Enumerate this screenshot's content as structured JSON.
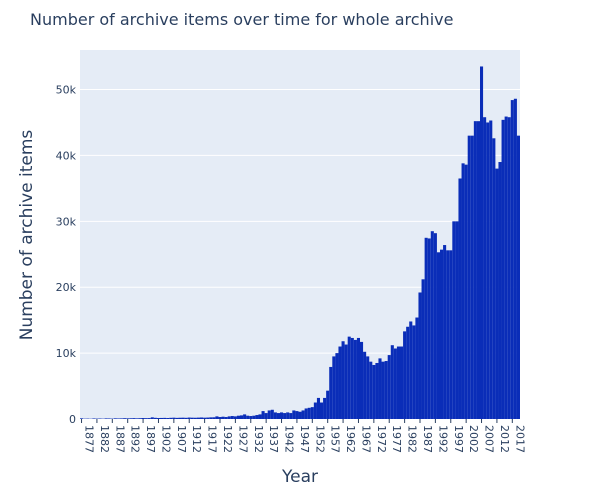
{
  "chart_data": {
    "type": "bar",
    "title": "Number of archive items over time for whole archive",
    "xlabel": "Year",
    "ylabel": "Number of archive items",
    "color": "#0a2db8",
    "x": [
      1877,
      1878,
      1879,
      1880,
      1881,
      1882,
      1883,
      1884,
      1885,
      1886,
      1887,
      1888,
      1889,
      1890,
      1891,
      1892,
      1893,
      1894,
      1895,
      1896,
      1897,
      1898,
      1899,
      1900,
      1901,
      1902,
      1903,
      1904,
      1905,
      1906,
      1907,
      1908,
      1909,
      1910,
      1911,
      1912,
      1913,
      1914,
      1915,
      1916,
      1917,
      1918,
      1919,
      1920,
      1921,
      1922,
      1923,
      1924,
      1925,
      1926,
      1927,
      1928,
      1929,
      1930,
      1931,
      1932,
      1933,
      1934,
      1935,
      1936,
      1937,
      1938,
      1939,
      1940,
      1941,
      1942,
      1943,
      1944,
      1945,
      1946,
      1947,
      1948,
      1949,
      1950,
      1951,
      1952,
      1953,
      1954,
      1955,
      1956,
      1957,
      1958,
      1959,
      1960,
      1961,
      1962,
      1963,
      1964,
      1965,
      1966,
      1967,
      1968,
      1969,
      1970,
      1971,
      1972,
      1973,
      1974,
      1975,
      1976,
      1977,
      1978,
      1979,
      1980,
      1981,
      1982,
      1983,
      1984,
      1985,
      1986,
      1987,
      1988,
      1989,
      1990,
      1991,
      1992,
      1993,
      1994,
      1995,
      1996,
      1997,
      1998,
      1999,
      2000,
      2001,
      2002,
      2003,
      2004,
      2005,
      2006,
      2007,
      2008,
      2009,
      2010,
      2011,
      2012,
      2013,
      2014,
      2015,
      2016,
      2017,
      2018,
      2019
    ],
    "values": [
      100,
      50,
      60,
      40,
      80,
      60,
      70,
      50,
      90,
      80,
      60,
      100,
      80,
      90,
      120,
      100,
      110,
      130,
      100,
      120,
      150,
      130,
      140,
      250,
      180,
      150,
      160,
      170,
      150,
      180,
      200,
      170,
      190,
      200,
      180,
      220,
      200,
      190,
      210,
      230,
      200,
      220,
      250,
      260,
      400,
      300,
      350,
      300,
      400,
      450,
      400,
      500,
      550,
      700,
      500,
      450,
      500,
      600,
      700,
      1200,
      900,
      1300,
      1400,
      1000,
      900,
      1000,
      900,
      1000,
      900,
      1300,
      1200,
      1100,
      1300,
      1600,
      1700,
      1800,
      2500,
      3200,
      2500,
      3200,
      4300,
      7900,
      9500,
      10000,
      11000,
      11800,
      11300,
      12500,
      12300,
      12000,
      12300,
      11700,
      10200,
      9500,
      8700,
      8200,
      8500,
      9200,
      8700,
      8800,
      9700,
      11200,
      10700,
      11000,
      11000,
      13300,
      14000,
      14800,
      14200,
      15400,
      19200,
      21200,
      27500,
      27400,
      28500,
      28200,
      25300,
      25700,
      26400,
      25600,
      25600,
      30000,
      30000,
      36500,
      38800,
      38600,
      43000,
      43000,
      45200,
      45200,
      53500,
      45800,
      45000,
      45300,
      42600,
      38000,
      39000,
      45400,
      45900,
      45800,
      48400,
      48600,
      43000
    ],
    "xlim": [
      1876.5,
      2019.5
    ],
    "xticks": [
      1877,
      1882,
      1887,
      1892,
      1897,
      1902,
      1907,
      1912,
      1917,
      1922,
      1927,
      1932,
      1937,
      1942,
      1947,
      1952,
      1957,
      1962,
      1967,
      1972,
      1977,
      1982,
      1987,
      1992,
      1997,
      2002,
      2007,
      2012,
      2017
    ],
    "ylim": [
      0,
      56000
    ],
    "yticks": [
      0,
      {
        "value": 10000,
        "label": "10k"
      },
      {
        "value": 20000,
        "label": "20k"
      },
      {
        "value": 30000,
        "label": "30k"
      },
      {
        "value": 40000,
        "label": "40k"
      },
      {
        "value": 50000,
        "label": "50k"
      }
    ],
    "grid": true
  }
}
